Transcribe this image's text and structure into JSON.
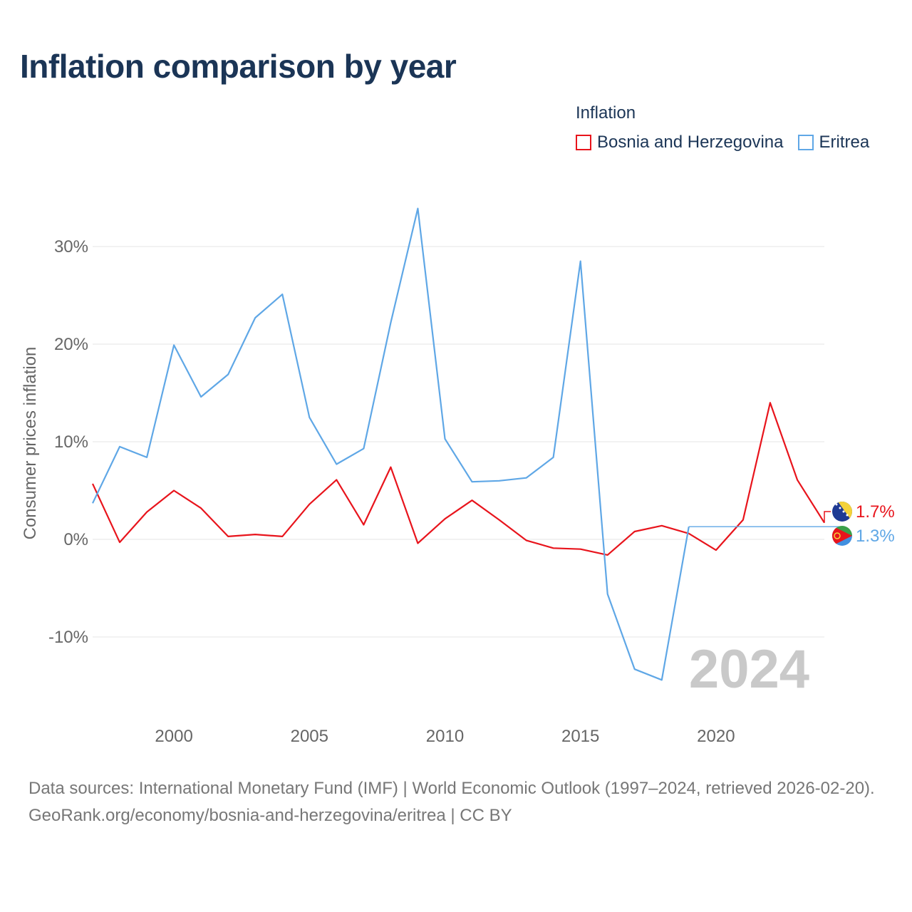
{
  "title": "Inflation comparison by year",
  "legend": {
    "title": "Inflation",
    "items": [
      {
        "label": "Bosnia and Herzegovina",
        "color": "#e8141c"
      },
      {
        "label": "Eritrea",
        "color": "#5fa7e6"
      }
    ]
  },
  "chart_data": {
    "type": "line",
    "title": "Inflation comparison by year",
    "xlabel": "",
    "ylabel": "Consumer prices inflation",
    "xlim": [
      1997,
      2024
    ],
    "ylim": [
      -16,
      36
    ],
    "xticks": [
      2000,
      2005,
      2010,
      2015,
      2020
    ],
    "xtick_labels": [
      "2000",
      "2005",
      "2010",
      "2015",
      "2020"
    ],
    "yticks": [
      -10,
      0,
      10,
      20,
      30
    ],
    "ytick_labels": [
      "-10%",
      "0%",
      "10%",
      "20%",
      "30%"
    ],
    "grid": true,
    "year_watermark": "2024",
    "x": [
      1997,
      1998,
      1999,
      2000,
      2001,
      2002,
      2003,
      2004,
      2005,
      2006,
      2007,
      2008,
      2009,
      2010,
      2011,
      2012,
      2013,
      2014,
      2015,
      2016,
      2017,
      2018,
      2019,
      2020,
      2021,
      2022,
      2023,
      2024
    ],
    "series": [
      {
        "name": "Bosnia and Herzegovina",
        "color": "#e8141c",
        "end_label": "1.7%",
        "flag": "bosnia-and-herzegovina-flag-icon",
        "values": [
          5.7,
          -0.3,
          2.8,
          5.0,
          3.2,
          0.3,
          0.5,
          0.3,
          3.6,
          6.1,
          1.5,
          7.4,
          -0.4,
          2.1,
          4.0,
          2.0,
          -0.1,
          -0.9,
          -1.0,
          -1.6,
          0.8,
          1.4,
          0.6,
          -1.1,
          2.0,
          14.0,
          6.1,
          1.7
        ]
      },
      {
        "name": "Eritrea",
        "color": "#5fa7e6",
        "end_label": "1.3%",
        "flag": "eritrea-flag-icon",
        "values": [
          3.7,
          9.5,
          8.4,
          19.9,
          14.6,
          16.9,
          22.7,
          25.1,
          12.5,
          7.7,
          9.3,
          22.2,
          33.9,
          10.3,
          5.9,
          6.0,
          6.3,
          8.4,
          28.5,
          -5.6,
          -13.3,
          -14.4,
          1.3,
          null,
          null,
          null,
          null,
          null
        ],
        "projection_from": 2019,
        "projection_value": 1.3
      }
    ]
  },
  "source": {
    "line1": "Data sources: International Monetary Fund (IMF) | World Economic Outlook (1997–2024, retrieved 2026-02-20).",
    "line2": "GeoRank.org/economy/bosnia-and-herzegovina/eritrea | CC BY"
  }
}
